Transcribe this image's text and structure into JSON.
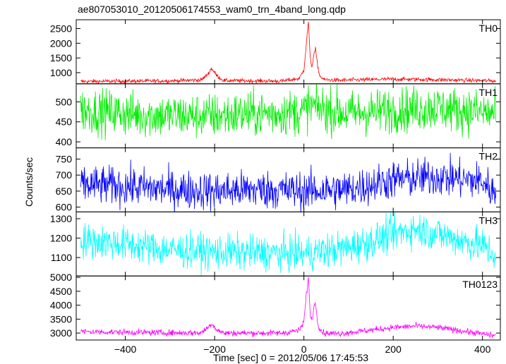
{
  "chart_data": {
    "type": "line",
    "title": "ae807053010_20120506174553_wam0_trn_4band_long.qdp",
    "xlabel": "Time [sec] 0 = 2012/05/06 17:45:53",
    "ylabel": "Counts/sec",
    "xlim": [
      -510,
      440
    ],
    "x_ticks": [
      -400,
      -200,
      0,
      200,
      400
    ],
    "x_tick_labels": [
      "−400",
      "−200",
      "0",
      "200",
      "400"
    ],
    "grid": false,
    "legend": "none",
    "panels": [
      {
        "name": "TH0",
        "color": "#ff0000",
        "ylim": [
          620,
          2800
        ],
        "y_ticks": [
          1000,
          1500,
          2000,
          2500
        ],
        "y_tick_labels": [
          "1000",
          "1500",
          "2000",
          "2500"
        ],
        "keypoints": {
          "x": [
            -500,
            -300,
            -230,
            -215,
            -207,
            -195,
            -180,
            -50,
            -10,
            0,
            5,
            10,
            14,
            18,
            22,
            26,
            30,
            35,
            45,
            80,
            200,
            300,
            430
          ],
          "y": [
            700,
            720,
            750,
            950,
            1150,
            900,
            730,
            710,
            800,
            1100,
            1900,
            2750,
            1500,
            1200,
            1600,
            1800,
            1300,
            900,
            760,
            740,
            780,
            760,
            720
          ]
        },
        "noise_amplitude": 35
      },
      {
        "name": "TH1",
        "color": "#00ee00",
        "ylim": [
          385,
          545
        ],
        "y_ticks": [
          400,
          450,
          500
        ],
        "y_tick_labels": [
          "400",
          "450",
          "500"
        ],
        "keypoints": {
          "x": [
            -500,
            -400,
            -300,
            -200,
            -100,
            0,
            10,
            100,
            200,
            300,
            430
          ],
          "y": [
            480,
            470,
            465,
            465,
            470,
            475,
            490,
            470,
            480,
            485,
            470
          ]
        },
        "noise_amplitude": 28
      },
      {
        "name": "TH2",
        "color": "#0000ff",
        "ylim": [
          585,
          785
        ],
        "y_ticks": [
          600,
          650,
          700,
          750
        ],
        "y_tick_labels": [
          "600",
          "650",
          "700",
          "750"
        ],
        "keypoints": {
          "x": [
            -500,
            -400,
            -300,
            -200,
            -100,
            0,
            100,
            200,
            300,
            400,
            430
          ],
          "y": [
            670,
            665,
            655,
            650,
            655,
            650,
            655,
            685,
            695,
            680,
            640
          ]
        },
        "noise_amplitude": 30
      },
      {
        "name": "TH3",
        "color": "#00ffff",
        "ylim": [
          1005,
          1335
        ],
        "y_ticks": [
          1100,
          1200,
          1300
        ],
        "y_tick_labels": [
          "1100",
          "1200",
          "1300"
        ],
        "keypoints": {
          "x": [
            -500,
            -400,
            -300,
            -200,
            -100,
            0,
            100,
            200,
            250,
            300,
            400,
            430
          ],
          "y": [
            1190,
            1170,
            1140,
            1130,
            1125,
            1120,
            1150,
            1220,
            1250,
            1220,
            1160,
            1110
          ]
        },
        "noise_amplitude": 45
      },
      {
        "name": "TH0123",
        "color": "#ff00ff",
        "ylim": [
          2750,
          5050
        ],
        "y_ticks": [
          3000,
          3500,
          4000,
          4500,
          5000
        ],
        "y_tick_labels": [
          "3000",
          "3500",
          "4000",
          "4500",
          "5000"
        ],
        "keypoints": {
          "x": [
            -500,
            -300,
            -230,
            -215,
            -207,
            -195,
            -180,
            -50,
            -10,
            0,
            5,
            10,
            14,
            18,
            22,
            26,
            30,
            35,
            45,
            80,
            200,
            250,
            300,
            430
          ],
          "y": [
            3050,
            3010,
            3010,
            3200,
            3350,
            3120,
            3000,
            3000,
            3100,
            3400,
            4300,
            5000,
            3700,
            3450,
            3900,
            4100,
            3500,
            3150,
            3000,
            2980,
            3200,
            3250,
            3200,
            2900
          ]
        },
        "noise_amplitude": 55
      }
    ]
  }
}
